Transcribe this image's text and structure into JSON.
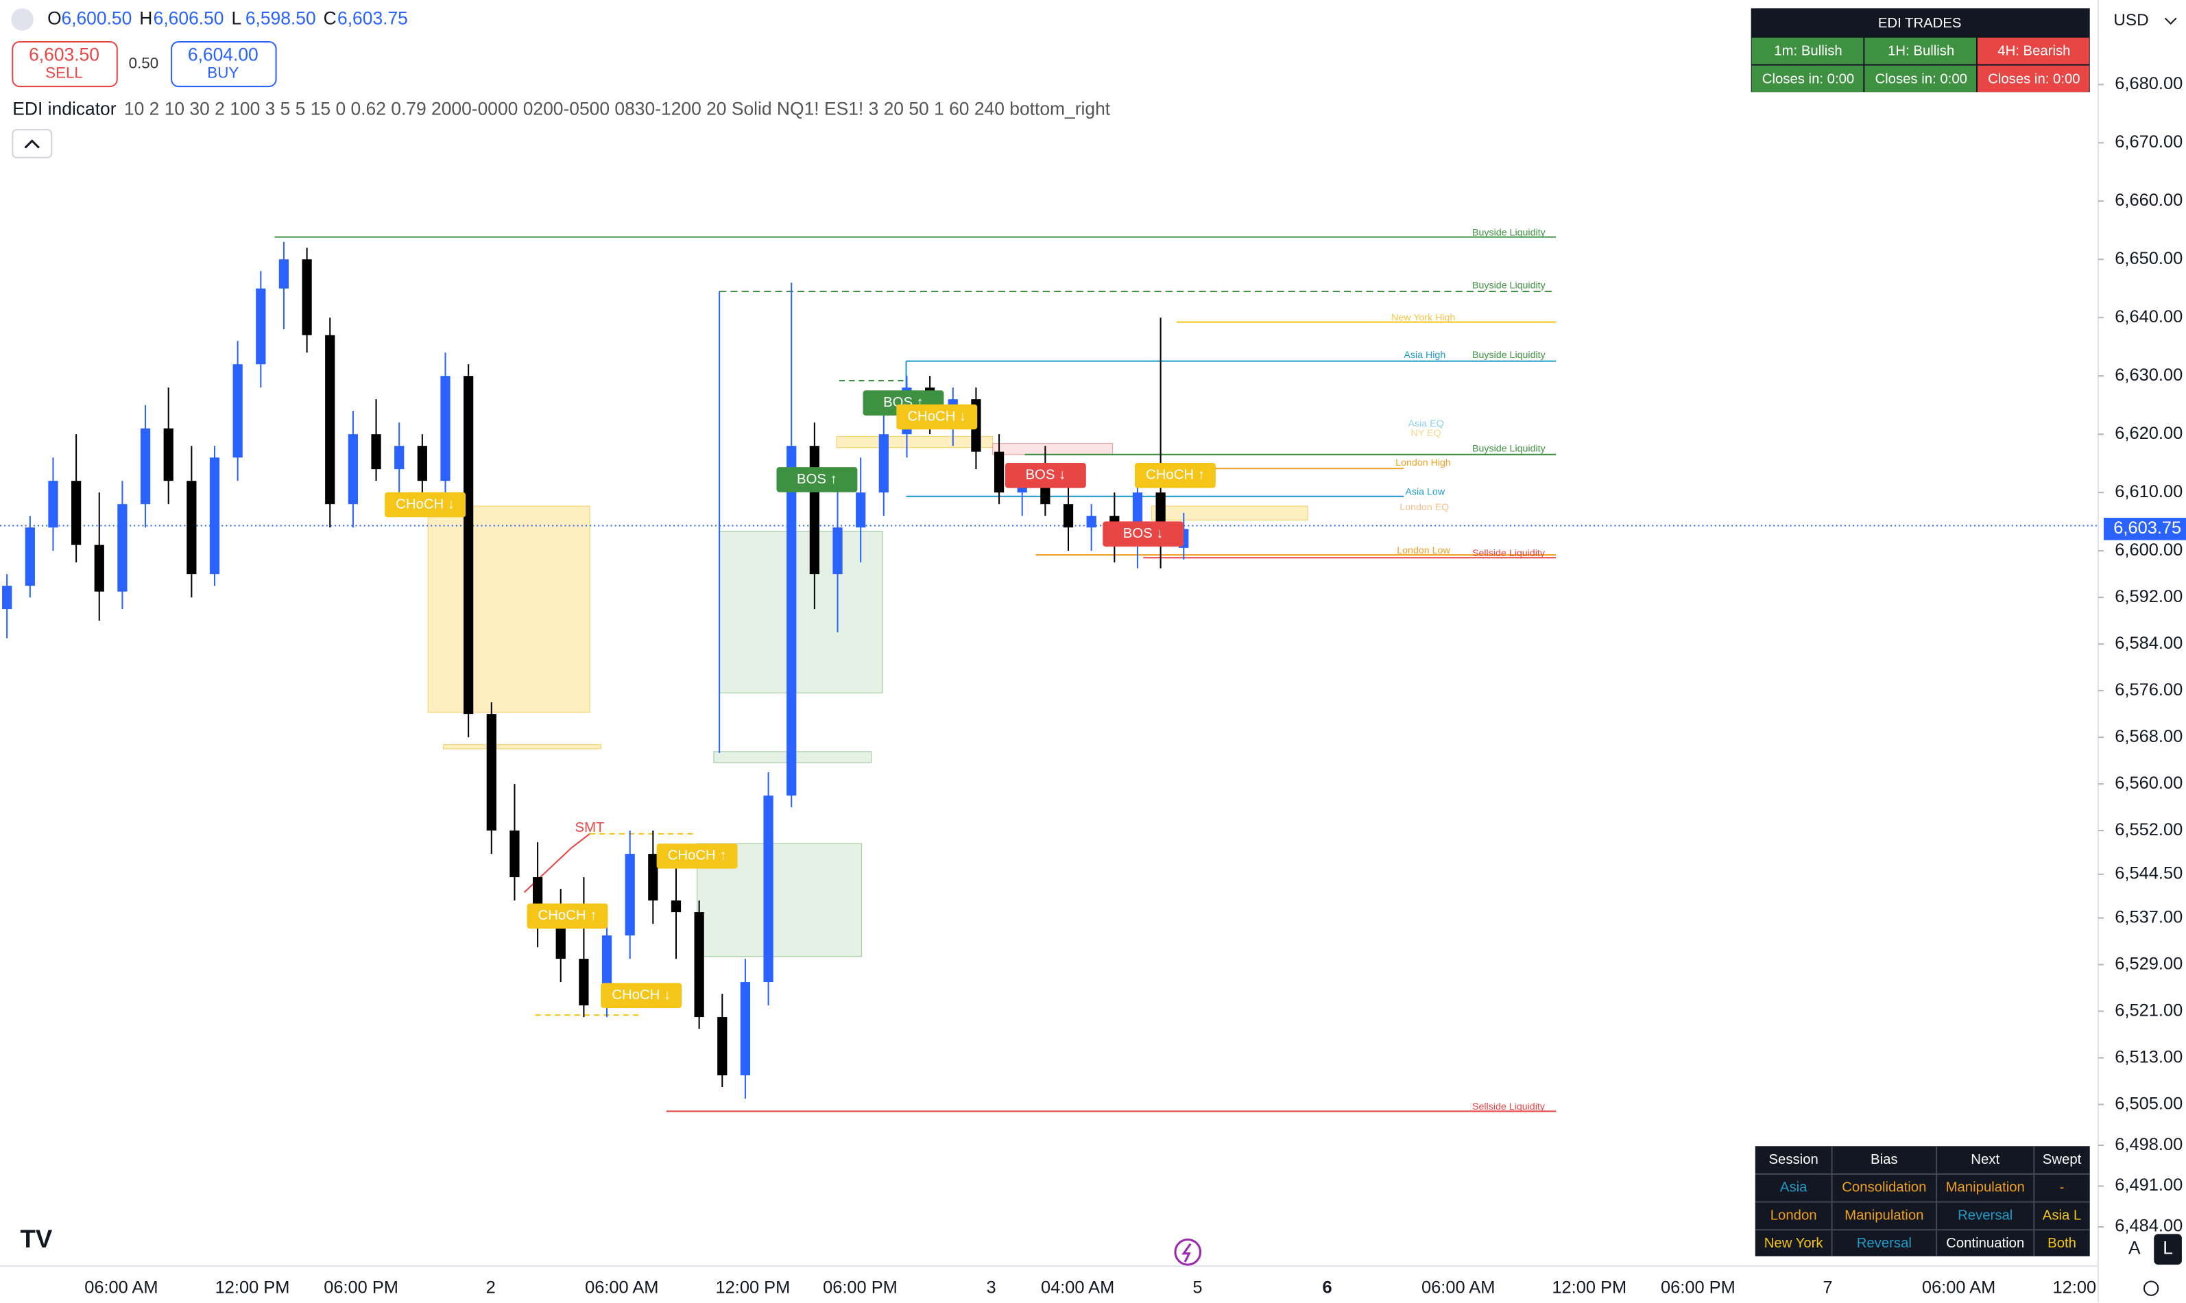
{
  "header": {
    "ohlc": [
      {
        "key": "O",
        "value": "6,600.50"
      },
      {
        "key": "H",
        "value": "6,606.50"
      },
      {
        "key": "L",
        "value": "6,598.50"
      },
      {
        "key": "C",
        "value": "6,603.75"
      }
    ],
    "sell_price": "6,603.50",
    "sell": "SELL",
    "spread": "0.50",
    "buy_price": "6,604.00",
    "buy": "BUY",
    "indicator_name": "EDI indicator",
    "indicator_params": "10 2 10 30 2 100 3 5 5 15 0 0.62 0.79 2000-0000 0200-0500 0830-1200 20 Solid NQ1! ES1! 3 20 50 1 60 240 bottom_right"
  },
  "chart_data": {
    "type": "candlestick",
    "open": [
      6590,
      6594,
      6604,
      6612,
      6601,
      6593,
      6608,
      6621,
      6612,
      6596,
      6616,
      6632,
      6645,
      6650,
      6637,
      6608,
      6620,
      6614,
      6618,
      6612,
      6630,
      6572,
      6552,
      6544,
      6536,
      6530,
      6522,
      6534,
      6548,
      6540,
      6538,
      6520,
      6510,
      6526,
      6558,
      6618,
      6596,
      6604,
      6610,
      6620,
      6628,
      6624,
      6626,
      6617,
      6610,
      6612,
      6608,
      6604,
      6606,
      6602,
      6610,
      6600.5
    ],
    "high": [
      6596,
      6606,
      6616,
      6620,
      6610,
      6612,
      6625,
      6628,
      6618,
      6618,
      6636,
      6648,
      6653,
      6652,
      6640,
      6624,
      6626,
      6622,
      6620,
      6634,
      6632,
      6574,
      6560,
      6550,
      6542,
      6544,
      6536,
      6552,
      6552,
      6546,
      6540,
      6524,
      6530,
      6562,
      6646,
      6622,
      6612,
      6616,
      6624,
      6630,
      6630,
      6628,
      6628,
      6620,
      6614,
      6618,
      6614,
      6608,
      6610,
      6612,
      6640,
      6606.5
    ],
    "low": [
      6585,
      6592,
      6600,
      6598,
      6588,
      6590,
      6604,
      6608,
      6592,
      6594,
      6612,
      6628,
      6638,
      6634,
      6604,
      6604,
      6612,
      6610,
      6608,
      6610,
      6568,
      6548,
      6540,
      6532,
      6526,
      6520,
      6520,
      6530,
      6536,
      6530,
      6518,
      6508,
      6506,
      6522,
      6556,
      6590,
      6586,
      6598,
      6606,
      6616,
      6620,
      6618,
      6614,
      6608,
      6606,
      6606,
      6600,
      6600,
      6598,
      6597,
      6597,
      6598.5
    ],
    "close": [
      6594,
      6604,
      6612,
      6601,
      6593,
      6608,
      6621,
      6612,
      6596,
      6616,
      6632,
      6645,
      6650,
      6637,
      6608,
      6620,
      6614,
      6618,
      6612,
      6630,
      6572,
      6552,
      6544,
      6536,
      6530,
      6522,
      6534,
      6548,
      6540,
      6538,
      6520,
      6510,
      6526,
      6558,
      6618,
      6596,
      6604,
      6610,
      6620,
      6628,
      6624,
      6626,
      6617,
      6610,
      6612,
      6608,
      6604,
      6606,
      6602,
      6610,
      6601,
      6603.75
    ],
    "up_color": "#2962ff",
    "down_color": "#000000",
    "ylim": [
      6478,
      6694.5
    ],
    "yticks": [
      {
        "value": 6680,
        "label": "6,680.00"
      },
      {
        "value": 6670,
        "label": "6,670.00"
      },
      {
        "value": 6660,
        "label": "6,660.00"
      },
      {
        "value": 6650,
        "label": "6,650.00"
      },
      {
        "value": 6640,
        "label": "6,640.00"
      },
      {
        "value": 6630,
        "label": "6,630.00"
      },
      {
        "value": 6620,
        "label": "6,620.00"
      },
      {
        "value": 6610,
        "label": "6,610.00"
      },
      {
        "value": 6600,
        "label": "6,600.00"
      },
      {
        "value": 6592,
        "label": "6,592.00"
      },
      {
        "value": 6584,
        "label": "6,584.00"
      },
      {
        "value": 6576,
        "label": "6,576.00"
      },
      {
        "value": 6568,
        "label": "6,568.00"
      },
      {
        "value": 6560,
        "label": "6,560.00"
      },
      {
        "value": 6552,
        "label": "6,552.00"
      },
      {
        "value": 6544.5,
        "label": "6,544.50"
      },
      {
        "value": 6537,
        "label": "6,537.00"
      },
      {
        "value": 6529,
        "label": "6,529.00"
      },
      {
        "value": 6521,
        "label": "6,521.00"
      },
      {
        "value": 6513,
        "label": "6,513.00"
      },
      {
        "value": 6505,
        "label": "6,505.00"
      },
      {
        "value": 6498,
        "label": "6,498.00"
      },
      {
        "value": 6491,
        "label": "6,491.00"
      },
      {
        "value": 6484,
        "label": "6,484.00"
      }
    ],
    "last_price": {
      "value": 6603.75,
      "label": "6,603.75"
    },
    "currency": "USD",
    "x_labels": [
      "06:00 AM",
      "12:00 PM",
      "06:00 PM",
      "2",
      "06:00 AM",
      "12:00 PM",
      "06:00 PM",
      "3",
      "04:00 AM",
      "5",
      "6",
      "06:00 AM",
      "12:00 PM",
      "06:00 PM",
      "7",
      "06:00 AM",
      "12:00"
    ],
    "annotations": [
      "Buyside Liquidity",
      "Buyside Liquidity",
      "Buyside Liquidity",
      "Buyside Liquidity",
      "Sellside Liquidity",
      "Sellside Liquidity",
      "New York High",
      "Asia High",
      "Asia EQ",
      "NY EQ",
      "London High",
      "Asia Low",
      "London EQ",
      "London Low",
      "SMT",
      "CHoCH ↓",
      "CHoCH ↑",
      "CHoCH ↓",
      "CHoCH ↑",
      "BOS ↑",
      "BOS ↑",
      "CHoCH ↓",
      "BOS ↓",
      "BOS ↓",
      "CHoCH ↑"
    ]
  },
  "trades_table": {
    "title": "EDI TRADES",
    "cells": [
      [
        "1m: Bullish",
        "1H: Bullish",
        "4H: Bearish"
      ],
      [
        "Closes in: 0:00",
        "Closes in: 0:00",
        "Closes in: 0:00"
      ]
    ]
  },
  "session_table": {
    "header": [
      "Session",
      "Bias",
      "Next",
      "Swept"
    ],
    "rows": [
      [
        "Asia",
        "Consolidation",
        "Manipulation",
        "-"
      ],
      [
        "London",
        "Manipulation",
        "Reversal",
        "Asia L"
      ],
      [
        "New York",
        "Reversal",
        "Continuation",
        "Both"
      ]
    ]
  }
}
